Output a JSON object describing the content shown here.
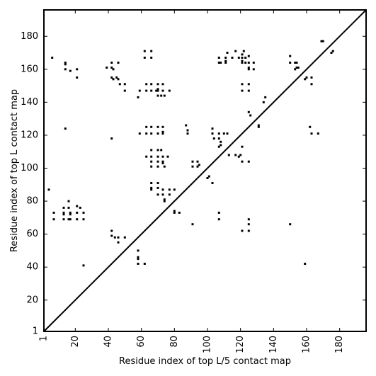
{
  "chart_data": {
    "type": "scatter",
    "title": "",
    "xlabel": "Residue index of top L/5 contact map",
    "ylabel": "Residue index of top L contact map",
    "xlim": [
      1,
      196
    ],
    "ylim": [
      1,
      196
    ],
    "xticks": [
      1,
      20,
      40,
      60,
      80,
      100,
      120,
      140,
      160,
      180
    ],
    "yticks": [
      1,
      20,
      40,
      60,
      80,
      100,
      120,
      140,
      160,
      180
    ],
    "xtick_labels": [
      "1",
      "20",
      "40",
      "60",
      "80",
      "100",
      "120",
      "140",
      "160",
      "180"
    ],
    "ytick_labels": [
      "1",
      "20",
      "40",
      "60",
      "80",
      "100",
      "120",
      "140",
      "160",
      "180"
    ],
    "grid": false,
    "diagonal_line": true,
    "marker": "square",
    "marker_color": "#000000",
    "upper_triangle_points": [
      [
        6,
        167
      ],
      [
        14,
        164
      ],
      [
        14,
        163
      ],
      [
        14,
        160
      ],
      [
        17,
        159
      ],
      [
        21,
        160
      ],
      [
        21,
        155
      ],
      [
        14,
        124
      ],
      [
        39,
        161
      ],
      [
        42,
        164
      ],
      [
        42,
        161
      ],
      [
        43,
        160
      ],
      [
        42,
        155
      ],
      [
        43,
        154
      ],
      [
        46,
        164
      ],
      [
        45,
        155
      ],
      [
        46,
        154
      ],
      [
        47,
        151
      ],
      [
        50,
        151
      ],
      [
        50,
        147
      ],
      [
        42,
        118
      ],
      [
        58,
        143
      ],
      [
        59,
        121
      ],
      [
        59,
        147
      ],
      [
        62,
        171
      ],
      [
        62,
        167
      ],
      [
        63,
        151
      ],
      [
        63,
        147
      ],
      [
        63,
        125
      ],
      [
        63,
        121
      ],
      [
        66,
        171
      ],
      [
        66,
        167
      ],
      [
        66,
        151
      ],
      [
        66,
        147
      ],
      [
        66,
        125
      ],
      [
        66,
        121
      ],
      [
        69,
        147
      ],
      [
        70,
        151
      ],
      [
        70,
        148
      ],
      [
        70,
        147
      ],
      [
        70,
        144
      ],
      [
        70,
        125
      ],
      [
        70,
        121
      ],
      [
        72,
        144
      ],
      [
        73,
        151
      ],
      [
        73,
        147
      ],
      [
        73,
        125
      ],
      [
        73,
        122
      ],
      [
        73,
        121
      ],
      [
        74,
        144
      ],
      [
        77,
        147
      ],
      [
        63,
        107
      ],
      [
        66,
        111
      ],
      [
        66,
        107
      ],
      [
        66,
        104
      ],
      [
        66,
        101
      ],
      [
        70,
        111
      ],
      [
        70,
        107
      ],
      [
        70,
        104
      ],
      [
        70,
        101
      ],
      [
        72,
        111
      ],
      [
        73,
        107
      ],
      [
        73,
        104
      ],
      [
        73,
        103
      ],
      [
        74,
        101
      ],
      [
        76,
        107
      ],
      [
        66,
        91
      ],
      [
        66,
        88
      ],
      [
        70,
        91
      ],
      [
        70,
        88
      ],
      [
        66,
        87
      ],
      [
        70,
        84
      ],
      [
        73,
        87
      ],
      [
        73,
        84
      ],
      [
        74,
        81
      ],
      [
        74,
        80
      ],
      [
        77,
        87
      ],
      [
        77,
        84
      ],
      [
        80,
        87
      ],
      [
        80,
        74
      ],
      [
        80,
        73
      ],
      [
        83,
        73
      ],
      [
        87,
        126
      ],
      [
        88,
        123
      ],
      [
        88,
        121
      ],
      [
        91,
        104
      ],
      [
        91,
        101
      ],
      [
        94,
        104
      ],
      [
        94,
        101
      ],
      [
        95,
        102
      ],
      [
        100,
        94
      ],
      [
        101,
        95
      ],
      [
        103,
        91
      ],
      [
        103,
        124
      ],
      [
        103,
        121
      ],
      [
        104,
        118
      ],
      [
        107,
        121
      ],
      [
        107,
        118
      ],
      [
        108,
        116
      ],
      [
        108,
        114
      ],
      [
        107,
        113
      ],
      [
        110,
        121
      ],
      [
        112,
        121
      ],
      [
        107,
        167
      ],
      [
        107,
        164
      ],
      [
        108,
        164
      ],
      [
        111,
        167
      ],
      [
        111,
        165
      ],
      [
        111,
        164
      ],
      [
        112,
        170
      ],
      [
        115,
        167
      ],
      [
        117,
        171
      ],
      [
        119,
        167
      ],
      [
        121,
        169
      ],
      [
        121,
        167
      ],
      [
        121,
        165
      ],
      [
        121,
        164
      ],
      [
        121,
        151
      ],
      [
        121,
        147
      ],
      [
        122,
        171
      ],
      [
        123,
        167
      ],
      [
        123,
        164
      ],
      [
        125,
        168
      ],
      [
        125,
        164
      ],
      [
        125,
        161
      ],
      [
        125,
        160
      ],
      [
        125,
        151
      ],
      [
        125,
        147
      ],
      [
        128,
        164
      ],
      [
        128,
        160
      ],
      [
        125,
        134
      ],
      [
        126,
        132
      ],
      [
        131,
        126
      ],
      [
        131,
        125
      ],
      [
        134,
        140
      ],
      [
        135,
        143
      ],
      [
        113,
        108
      ],
      [
        117,
        108
      ],
      [
        119,
        107
      ],
      [
        120,
        108
      ],
      [
        121,
        113
      ],
      [
        121,
        104
      ],
      [
        125,
        104
      ],
      [
        107,
        73
      ],
      [
        107,
        69
      ],
      [
        121,
        62
      ],
      [
        125,
        69
      ],
      [
        125,
        66
      ],
      [
        125,
        62
      ],
      [
        91,
        66
      ],
      [
        150,
        168
      ],
      [
        150,
        164
      ],
      [
        153,
        164
      ],
      [
        154,
        164
      ],
      [
        154,
        161
      ],
      [
        155,
        161
      ],
      [
        153,
        160
      ],
      [
        159,
        154
      ],
      [
        160,
        155
      ],
      [
        163,
        155
      ],
      [
        163,
        151
      ],
      [
        162,
        125
      ],
      [
        163,
        121
      ],
      [
        167,
        121
      ],
      [
        169,
        177
      ],
      [
        170,
        177
      ],
      [
        175,
        170
      ],
      [
        176,
        171
      ],
      [
        150,
        66
      ],
      [
        159,
        42
      ]
    ],
    "lower_triangle_points": [
      [
        4,
        87
      ],
      [
        7,
        73
      ],
      [
        7,
        69
      ],
      [
        13,
        76
      ],
      [
        13,
        73
      ],
      [
        13,
        72
      ],
      [
        13,
        69
      ],
      [
        16,
        80
      ],
      [
        16,
        76
      ],
      [
        17,
        73
      ],
      [
        17,
        72
      ],
      [
        16,
        69
      ],
      [
        17,
        69
      ],
      [
        21,
        77
      ],
      [
        21,
        73
      ],
      [
        21,
        69
      ],
      [
        23,
        76
      ],
      [
        25,
        73
      ],
      [
        25,
        69
      ],
      [
        25,
        41
      ],
      [
        42,
        62
      ],
      [
        42,
        59
      ],
      [
        44,
        58
      ],
      [
        46,
        58
      ],
      [
        46,
        55
      ],
      [
        50,
        58
      ],
      [
        58,
        50
      ],
      [
        58,
        46
      ],
      [
        58,
        45
      ],
      [
        58,
        42
      ],
      [
        62,
        42
      ]
    ]
  }
}
